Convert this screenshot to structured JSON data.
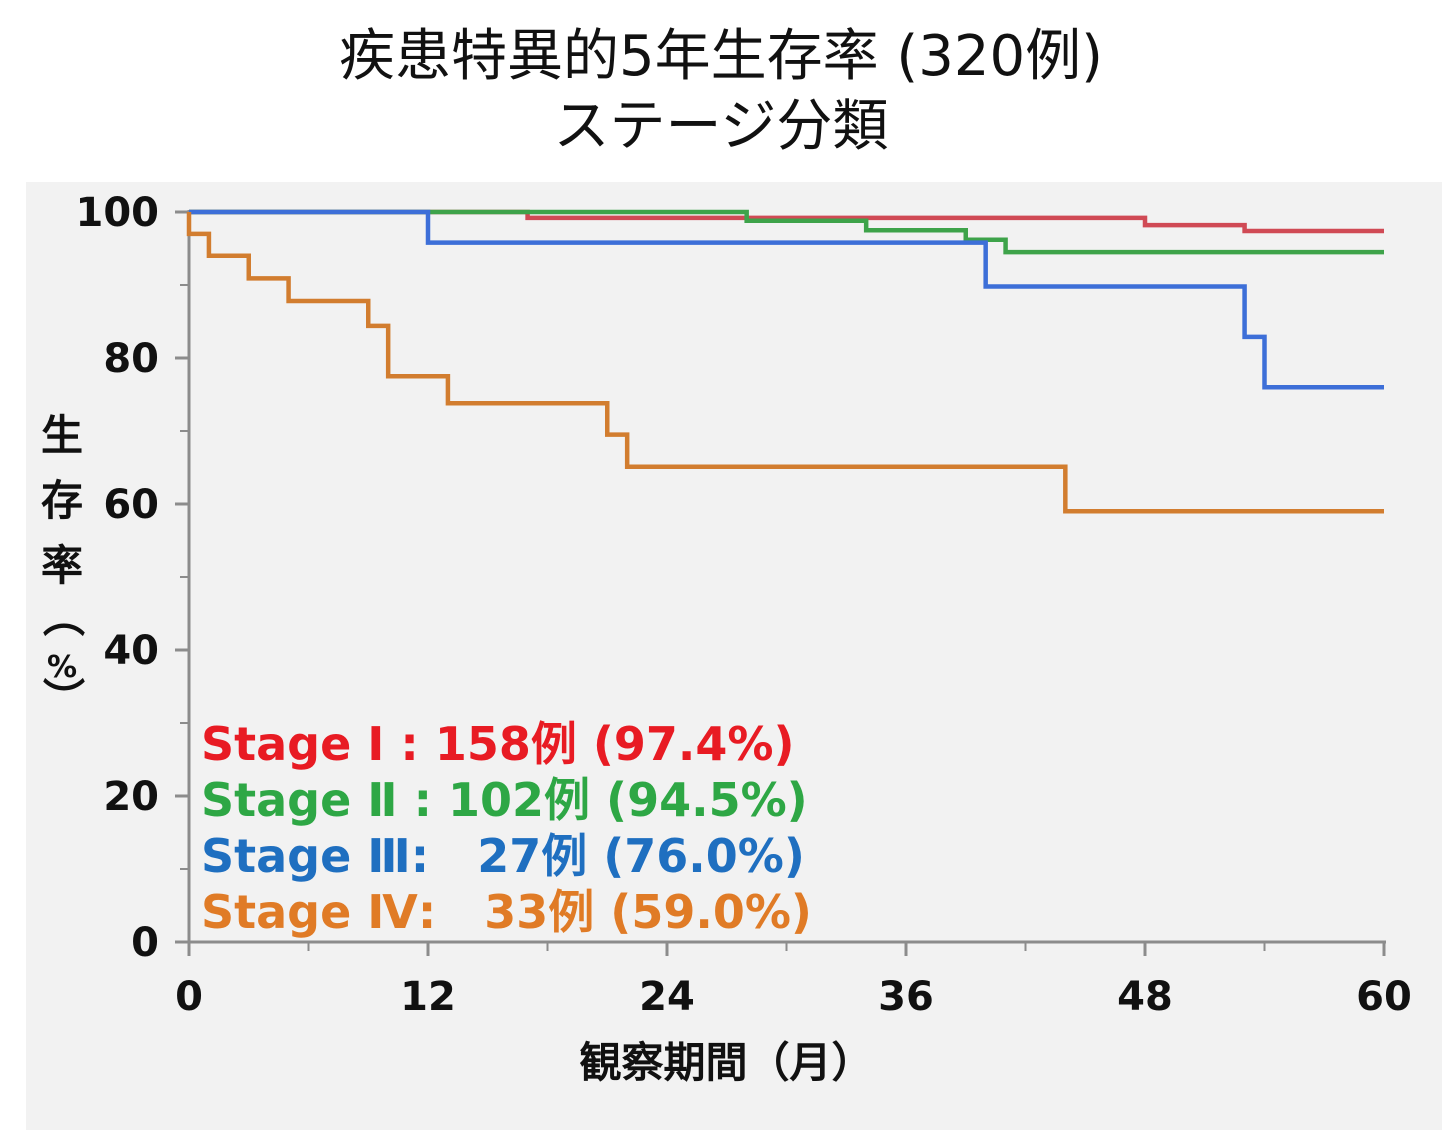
{
  "title": {
    "line1": "疾患特異的5年生存率 (320例)",
    "line2": "ステージ分類"
  },
  "chart_data": {
    "type": "line",
    "step": true,
    "xlabel": "観察期間（月）",
    "ylabel_chars": [
      "生",
      "存",
      "率",
      "（",
      "%",
      "）"
    ],
    "xlim": [
      0,
      60
    ],
    "ylim": [
      0,
      100
    ],
    "x_ticks": [
      0,
      12,
      24,
      36,
      48,
      60
    ],
    "y_ticks": [
      0,
      20,
      40,
      60,
      80,
      100
    ],
    "grid": false,
    "legend_position": "bottom-left",
    "series": [
      {
        "name": "Stage Ⅰ",
        "legend_label": "Stage Ⅰ : 158例 (97.4%)",
        "color": "#d04a55",
        "x": [
          0,
          17,
          48,
          53,
          60
        ],
        "y": [
          100,
          99.2,
          98.2,
          97.4,
          97.4
        ]
      },
      {
        "name": "Stage Ⅱ",
        "legend_label": "Stage Ⅱ : 102例 (94.5%)",
        "color": "#3ea34a",
        "x": [
          0,
          28,
          34,
          39,
          41,
          60
        ],
        "y": [
          100,
          98.8,
          97.5,
          96.2,
          94.5,
          94.5
        ]
      },
      {
        "name": "Stage Ⅲ",
        "legend_label": "Stage Ⅲ:   27例 (76.0%)",
        "color": "#3d6fd8",
        "x": [
          0,
          12,
          40,
          53,
          54,
          60
        ],
        "y": [
          100,
          95.8,
          89.8,
          82.9,
          76.0,
          76.0
        ]
      },
      {
        "name": "Stage Ⅳ",
        "legend_label": "Stage Ⅳ:   33例 (59.0%)",
        "color": "#d27d2f",
        "x": [
          0,
          1,
          3,
          5,
          9,
          10,
          13,
          21,
          22,
          44,
          60
        ],
        "y": [
          97.0,
          94.0,
          90.9,
          87.8,
          84.4,
          77.5,
          73.8,
          69.5,
          65.1,
          59.0,
          59.0
        ]
      }
    ],
    "legend_text_colors": [
      "#e81b23",
      "#2ea745",
      "#1f6fc0",
      "#e07b26"
    ]
  }
}
